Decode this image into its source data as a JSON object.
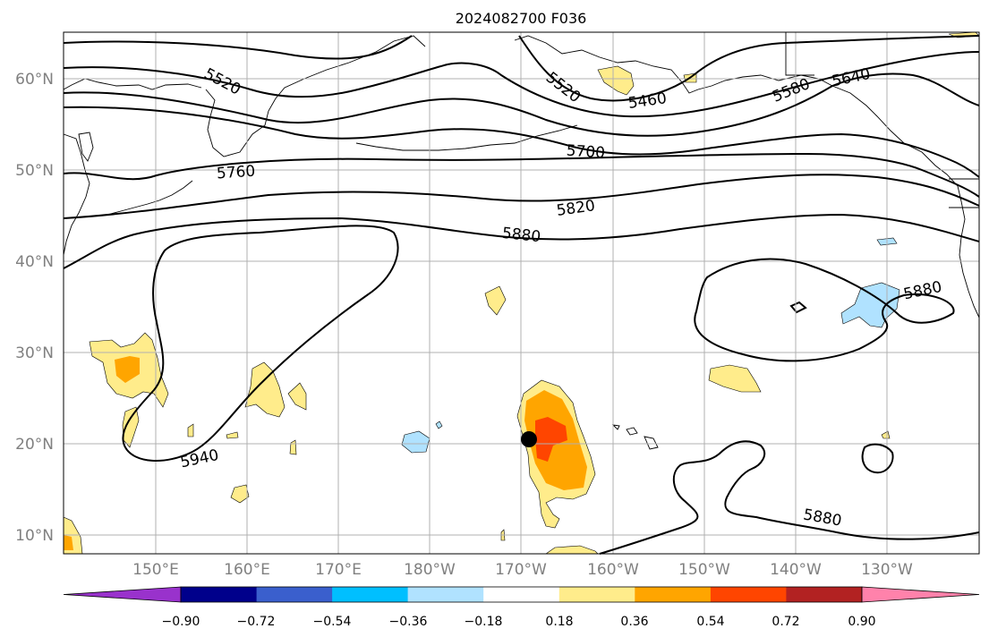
{
  "title": "2024082700 F036",
  "map": {
    "lat_labels": [
      "60°N",
      "50°N",
      "40°N",
      "30°N",
      "20°N",
      "10°N"
    ],
    "lon_labels": [
      "150°E",
      "160°E",
      "170°E",
      "180°W",
      "170°W",
      "160°W",
      "150°W",
      "140°W",
      "130°W"
    ],
    "contour_labels": [
      "5520",
      "5520",
      "5460",
      "5580",
      "5640",
      "5700",
      "5760",
      "5820",
      "5880",
      "5880",
      "5880",
      "5940"
    ],
    "marker": {
      "label": "",
      "lat": 20.4,
      "lon": -168.9
    }
  },
  "colorbar": {
    "ticks": [
      "−0.90",
      "−0.72",
      "−0.54",
      "−0.36",
      "−0.18",
      "0.18",
      "0.36",
      "0.54",
      "0.72",
      "0.90"
    ],
    "colors": [
      "#9932cc",
      "#00008b",
      "#3a5fcd",
      "#00bfff",
      "#b0e2ff",
      "#ffffff",
      "#ffec8b",
      "#ffa500",
      "#ff4500",
      "#b22222",
      "#ff82ab"
    ]
  },
  "chart_data": {
    "type": "heatmap",
    "title": "2024082700 F036",
    "xlabel": "",
    "ylabel": "",
    "lon_range": [
      "140°E",
      "120°W"
    ],
    "lat_range": [
      "8°N",
      "65°N"
    ],
    "contour_levels": [
      5460,
      5520,
      5580,
      5640,
      5700,
      5760,
      5820,
      5880,
      5940
    ],
    "color_levels": [
      -0.9,
      -0.72,
      -0.54,
      -0.36,
      -0.18,
      0.18,
      0.36,
      0.54,
      0.72,
      0.9
    ],
    "grid": true
  }
}
